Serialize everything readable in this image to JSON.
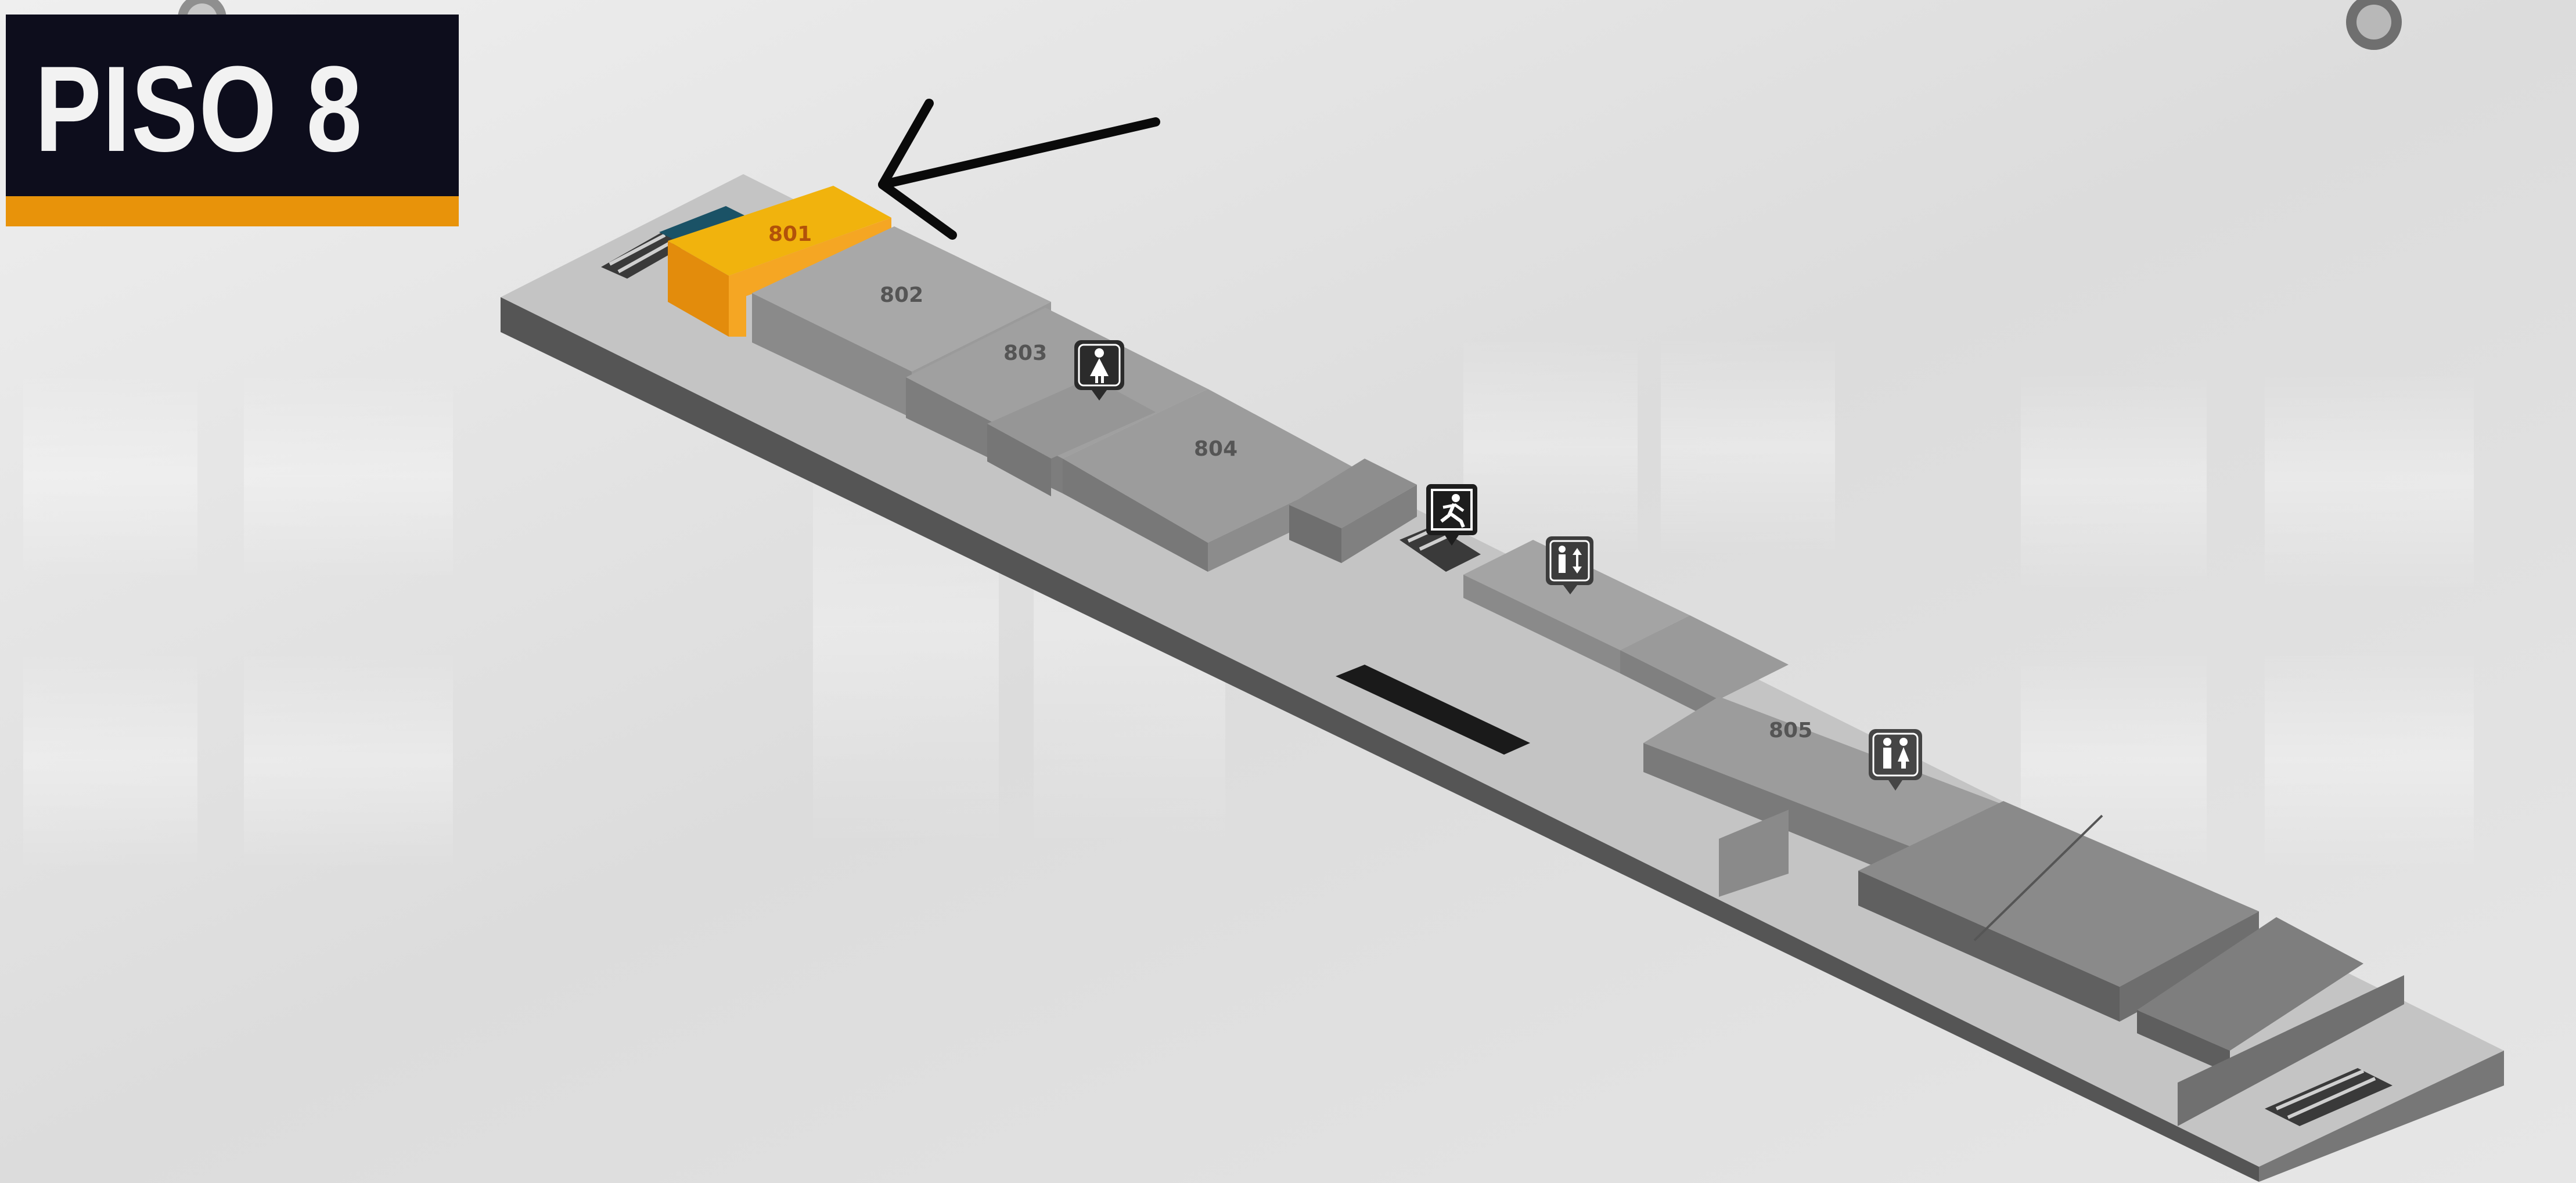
{
  "floor": {
    "title": "PISO 8"
  },
  "rooms": [
    {
      "id": "801",
      "label": "801",
      "highlighted": true,
      "color": "#f1b30d"
    },
    {
      "id": "802",
      "label": "802"
    },
    {
      "id": "803",
      "label": "803"
    },
    {
      "id": "804",
      "label": "804"
    },
    {
      "id": "805",
      "label": "805"
    }
  ],
  "icons": [
    {
      "name": "womens-restroom-icon"
    },
    {
      "name": "emergency-exit-icon"
    },
    {
      "name": "elevator-icon"
    },
    {
      "name": "restrooms-icon"
    }
  ],
  "colors": {
    "label_background": "#0d0d1c",
    "label_stripe": "#e8930a",
    "highlight": "#f1b30d",
    "building": "#8a8a8a",
    "arrow": "#0a0a0a"
  }
}
